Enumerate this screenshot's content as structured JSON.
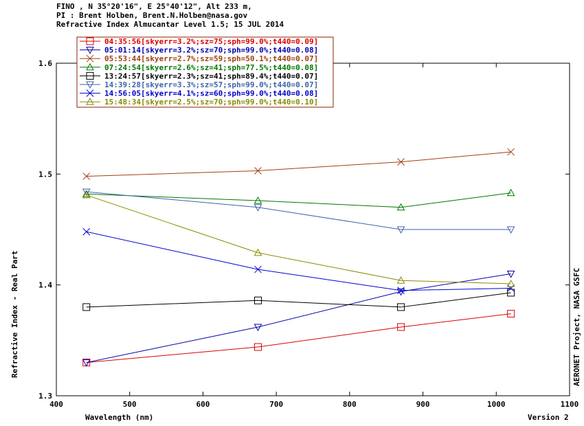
{
  "header": {
    "line1": "FINO , N 35°20'16\", E 25°40'12\", Alt 233 m,",
    "line2": "PI : Brent Holben, Brent.N.Holben@nasa.gov",
    "line3": "Refractive Index Almucantar Level 1.5; 15 JUL 2014"
  },
  "footer": {
    "version": "Version 2",
    "credit": "AERONET Project, NASA GSFC"
  },
  "chart_data": {
    "type": "line",
    "xlabel": "Wavelength (nm)",
    "ylabel": "Refractive Index - Real Part",
    "xlim": [
      400,
      1100
    ],
    "ylim": [
      1.3,
      1.6
    ],
    "xticks": [
      400,
      500,
      600,
      700,
      800,
      900,
      1000,
      1100
    ],
    "yticks": [
      1.3,
      1.4,
      1.5,
      1.6
    ],
    "ytick_labels": [
      "1.3",
      "1.4",
      "1.5",
      "1.6"
    ],
    "legend_position": "top-left",
    "x": [
      441,
      675,
      870,
      1020
    ],
    "series": [
      {
        "name": "04:35:56[skyerr=3.2%;sz=75;sph=99.0%;t440=0.09]",
        "color": "#dd0000",
        "marker": "square",
        "values": [
          1.33,
          1.344,
          1.362,
          1.374
        ]
      },
      {
        "name": "05:01:14[skyerr=3.2%;sz=70;sph=99.0%;t440=0.08]",
        "color": "#0000aa",
        "marker": "triangle-down",
        "values": [
          1.33,
          1.362,
          1.394,
          1.41
        ]
      },
      {
        "name": "05:53:44[skyerr=2.7%;sz=59;sph=50.1%;t440=0.07]",
        "color": "#a04010",
        "marker": "x",
        "values": [
          1.498,
          1.503,
          1.511,
          1.52
        ]
      },
      {
        "name": "07:24:54[skyerr=2.6%;sz=41;sph=77.5%;t440=0.08]",
        "color": "#007700",
        "marker": "triangle-up",
        "values": [
          1.482,
          1.476,
          1.47,
          1.483
        ]
      },
      {
        "name": "13:24:57[skyerr=2.3%;sz=41;sph=89.4%;t440=0.07]",
        "color": "#000000",
        "marker": "square",
        "values": [
          1.38,
          1.386,
          1.38,
          1.393
        ]
      },
      {
        "name": "14:39:28[skyerr=3.3%;sz=57;sph=99.0%;t440=0.07]",
        "color": "#3d62a8",
        "marker": "triangle-down",
        "values": [
          1.484,
          1.47,
          1.45,
          1.45
        ]
      },
      {
        "name": "14:56:05[skyerr=4.1%;sz=60;sph=99.0%;t440=0.08]",
        "color": "#0000cc",
        "marker": "x",
        "values": [
          1.448,
          1.414,
          1.395,
          1.397
        ]
      },
      {
        "name": "15:48:34[skyerr=2.5%;sz=70;sph=99.0%;t440=0.10]",
        "color": "#8a8a00",
        "marker": "triangle-up",
        "values": [
          1.481,
          1.429,
          1.404,
          1.401
        ]
      }
    ]
  }
}
